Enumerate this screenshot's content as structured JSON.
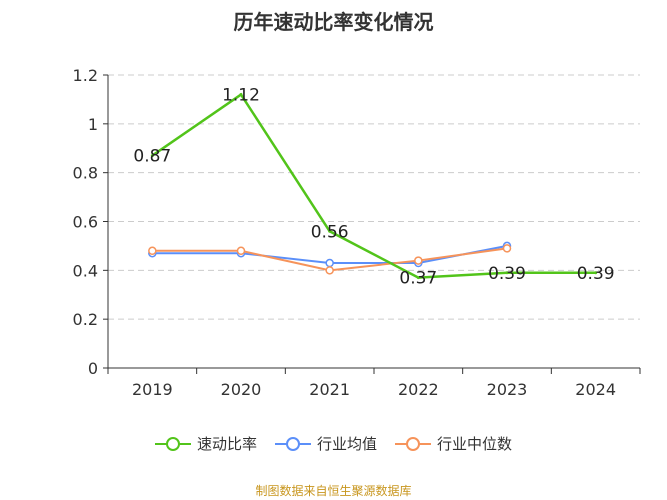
{
  "chart_data": {
    "type": "line",
    "title": "历年速动比率变化情况",
    "categories": [
      "2019",
      "2020",
      "2021",
      "2022",
      "2023",
      "2024"
    ],
    "series": [
      {
        "name": "速动比率",
        "color": "#52c41a",
        "values": [
          0.87,
          1.12,
          0.56,
          0.37,
          0.39,
          0.39
        ],
        "labels": [
          "0.87",
          "1.12",
          "0.56",
          "0.37",
          "0.39",
          "0.39"
        ]
      },
      {
        "name": "行业均值",
        "color": "#5b8ff9",
        "values": [
          0.47,
          0.47,
          0.43,
          0.43,
          0.5,
          null
        ]
      },
      {
        "name": "行业中位数",
        "color": "#f6935a",
        "values": [
          0.48,
          0.48,
          0.4,
          0.44,
          0.49,
          null
        ]
      }
    ],
    "ylim": [
      0,
      1.2
    ],
    "yticks": [
      "0",
      "0.2",
      "0.4",
      "0.6",
      "0.8",
      "1",
      "1.2"
    ],
    "grid": true,
    "legend_position": "bottom"
  },
  "source_note": "制图数据来自恒生聚源数据库"
}
